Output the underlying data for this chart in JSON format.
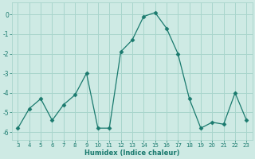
{
  "x": [
    3,
    4,
    5,
    6,
    7,
    8,
    9,
    10,
    11,
    12,
    13,
    14,
    15,
    16,
    17,
    18,
    19,
    20,
    21,
    22,
    23
  ],
  "y": [
    -5.8,
    -4.8,
    -4.3,
    -5.4,
    -4.6,
    -4.1,
    -3.0,
    -5.8,
    -5.8,
    -1.9,
    -1.3,
    -0.1,
    0.1,
    -0.7,
    -2.0,
    -4.3,
    -5.8,
    -5.5,
    -5.6,
    -4.0,
    -5.4
  ],
  "line_color": "#1a7a6e",
  "marker": "D",
  "marker_size": 2.5,
  "bg_color": "#ceeae4",
  "grid_color": "#a8d5cc",
  "xlabel": "Humidex (Indice chaleur)",
  "xlim": [
    2.5,
    23.5
  ],
  "ylim": [
    -6.4,
    0.6
  ],
  "yticks": [
    0,
    -1,
    -2,
    -3,
    -4,
    -5,
    -6
  ],
  "xticks": [
    3,
    4,
    5,
    6,
    7,
    8,
    9,
    10,
    11,
    12,
    13,
    14,
    15,
    16,
    17,
    18,
    19,
    20,
    21,
    22,
    23
  ]
}
